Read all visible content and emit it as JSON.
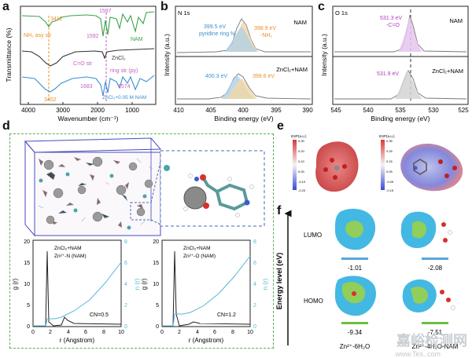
{
  "panels": {
    "a": "a",
    "b": "b",
    "c": "c",
    "d": "d",
    "e": "e",
    "f": "f"
  },
  "panel_a": {
    "ylabel": "Transmittance (%)",
    "xlabel": "Wavenumber (cm⁻¹)",
    "xticks": [
      "4000",
      "3000",
      "2000",
      "1000"
    ],
    "labels": {
      "nh2": "NH₂ asy str",
      "wn3412": "3412",
      "wn3402": "3402",
      "wn1592": "1592",
      "wn1597": "1597",
      "wn1683": "1683",
      "wn1574": "1574",
      "co": "C=O str",
      "ring": "ring str (py)",
      "nam": "NAM",
      "zncl2": "ZnCl₂",
      "mix": "ZnCl₂+0.05 M NAM"
    },
    "colors": {
      "nam": "#3aa34a",
      "zncl2": "#333333",
      "mix": "#3a8fd0"
    }
  },
  "panel_b": {
    "title": "N 1s",
    "ylabel": "Intensity (a.u.)",
    "xlabel": "Binding energy (eV)",
    "xticks": [
      "410",
      "405",
      "400",
      "395",
      "390"
    ],
    "top_tag": "NAM",
    "bottom_tag": "ZnCl₂+NAM",
    "pk1": "399.5 eV",
    "pk1b": "pyridine ring N",
    "pk2": "398.9 eV",
    "pk2b": "-NH₂",
    "pk3": "400.3 eV",
    "pk4": "399.6 eV"
  },
  "panel_c": {
    "title": "O 1s",
    "ylabel": "Intensity (a.u.)",
    "xlabel": "Binding energy (eV)",
    "xticks": [
      "545",
      "540",
      "535",
      "530",
      "525"
    ],
    "top_tag": "NAM",
    "bottom_tag": "ZnCl₂+NAM",
    "pk1": "531.3 eV",
    "pk1b": "-C=O",
    "pk2": "531.9 eV"
  },
  "panel_d": {
    "rdf1": {
      "legend1": "ZnCl₂+NAM",
      "legend2": "Zn²⁺-N (NAM)",
      "cn": "CN=0.5",
      "ylabel_l": "g (r)",
      "ylabel_r": "n (r)",
      "xlabel": "r (Angstrom)"
    },
    "rdf2": {
      "legend1": "ZnCl₂+NAM",
      "legend2": "Zn²⁺-O (NAM)",
      "cn": "CN=1.2",
      "ylabel_l": "g (r)",
      "ylabel_r": "n (r)",
      "xlabel": "r (Angstrom)"
    },
    "yticks_l": [
      "0",
      "5",
      "10",
      "15",
      "20"
    ],
    "yticks_r": [
      "0",
      "2",
      "4",
      "6",
      "8"
    ],
    "xticks": [
      "0",
      "2",
      "4",
      "6",
      "8",
      "10"
    ]
  },
  "panel_e": {
    "scale_label1": "ESP(a.u.)",
    "scale_label2": "ESP(a.u.)",
    "ticks1": [
      "0.30",
      "0.20",
      "0.10",
      "0.00",
      "-0.10",
      "-0.20"
    ],
    "ticks2": [
      "0.35",
      "0.25",
      "0.15",
      "0.05",
      "-0.05",
      "-0.15"
    ]
  },
  "panel_f": {
    "ylabel": "Energy level (eV)",
    "lumo": "LUMO",
    "homo": "HOMO",
    "lumo1": "-1.01",
    "lumo2": "-2.08",
    "homo1": "-9.34",
    "homo2": "-7.51",
    "name1": "Zn²⁺-6H₂O",
    "name2": "Zn²⁺-4H₂O-NAM"
  },
  "watermark": "嘉峪检测网",
  "watermark_url": "www.Tes..com"
}
